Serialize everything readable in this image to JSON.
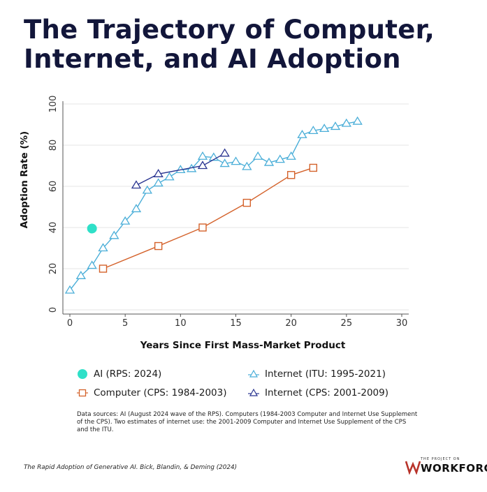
{
  "title_lines": [
    "The Trajectory of Computer,",
    "Internet, and AI Adoption"
  ],
  "chart_data": {
    "type": "line",
    "xlabel": "Years Since First Mass-Market Product",
    "ylabel": "Adoption Rate (%)",
    "xlim": [
      0,
      30
    ],
    "ylim": [
      0,
      100
    ],
    "xticks": [
      0,
      5,
      10,
      15,
      20,
      25,
      30
    ],
    "yticks": [
      0,
      20,
      40,
      60,
      80,
      100
    ],
    "grid": "horizontal",
    "series": [
      {
        "name": "AI (RPS: 2024)",
        "marker": "circle-filled",
        "color": "#2fe0c8",
        "points": [
          [
            2,
            39.5
          ]
        ]
      },
      {
        "name": "Internet (ITU: 1995-2021)",
        "marker": "triangle",
        "color": "#4aaed8",
        "points": [
          [
            0,
            9.5
          ],
          [
            1,
            16.5
          ],
          [
            2,
            21.5
          ],
          [
            3,
            30
          ],
          [
            4,
            36
          ],
          [
            5,
            43
          ],
          [
            6,
            49
          ],
          [
            7,
            58
          ],
          [
            8,
            61.5
          ],
          [
            9,
            64.5
          ],
          [
            10,
            68
          ],
          [
            11,
            68.5
          ],
          [
            12,
            74.5
          ],
          [
            13,
            74
          ],
          [
            14,
            71
          ],
          [
            15,
            72
          ],
          [
            16,
            69.5
          ],
          [
            17,
            74.5
          ],
          [
            18,
            71.5
          ],
          [
            19,
            73
          ],
          [
            20,
            74.5
          ],
          [
            21,
            85
          ],
          [
            22,
            87
          ],
          [
            23,
            88
          ],
          [
            24,
            89
          ],
          [
            25,
            90.5
          ],
          [
            26,
            91.5
          ]
        ]
      },
      {
        "name": "Computer (CPS: 1984-2003)",
        "marker": "square",
        "color": "#d4622b",
        "points": [
          [
            3,
            20
          ],
          [
            8,
            31
          ],
          [
            12,
            40
          ],
          [
            16,
            52
          ],
          [
            20,
            65.5
          ],
          [
            22,
            69
          ]
        ]
      },
      {
        "name": "Internet (CPS: 2001-2009)",
        "marker": "triangle",
        "color": "#2a3591",
        "points": [
          [
            6,
            60.5
          ],
          [
            8,
            66
          ],
          [
            12,
            70
          ],
          [
            14,
            76
          ]
        ]
      }
    ]
  },
  "legend": {
    "ai": "AI (RPS: 2024)",
    "computer": "Computer (CPS: 1984-2003)",
    "internet_itu": "Internet (ITU: 1995-2021)",
    "internet_cps": "Internet (CPS: 2001-2009)"
  },
  "source_text": "Data sources: AI (August 2024 wave of the RPS). Computers (1984-2003 Computer and Internet Use Supplement of the CPS). Two estimates of internet use: the 2001-2009 Computer and Internet Use Supplement of the CPS and the ITU.",
  "citation": "The Rapid Adoption of Generative AI. Bick, Blandin, & Deming (2024)",
  "logo": {
    "small": "THE PROJECT ON",
    "big": "WORKFORCE"
  }
}
